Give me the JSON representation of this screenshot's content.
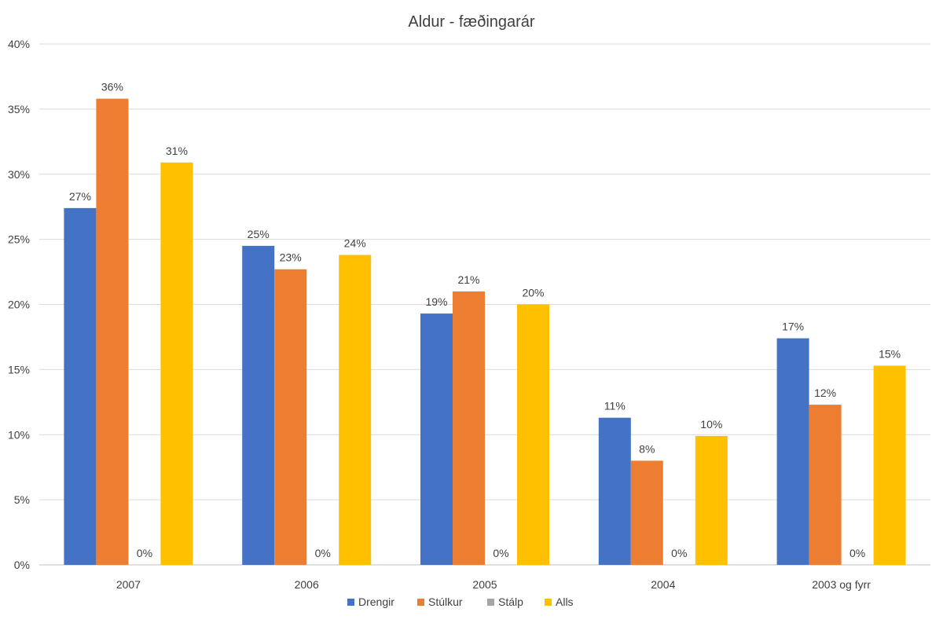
{
  "chart_data": {
    "type": "bar",
    "title": "Aldur - fæðingarár",
    "xlabel": "",
    "ylabel": "",
    "categories": [
      "2007",
      "2006",
      "2005",
      "2004",
      "2003 og fyrr"
    ],
    "series": [
      {
        "name": "Drengir",
        "color": "#4472C4",
        "values": [
          27.4,
          24.5,
          19.3,
          11.3,
          17.4
        ],
        "labels": [
          "27%",
          "25%",
          "19%",
          "11%",
          "17%"
        ]
      },
      {
        "name": "Stúlkur",
        "color": "#ED7D31",
        "values": [
          35.8,
          22.7,
          21.0,
          8.0,
          12.3
        ],
        "labels": [
          "36%",
          "23%",
          "21%",
          "8%",
          "12%"
        ]
      },
      {
        "name": "Stálp",
        "color": "#A5A5A5",
        "values": [
          0,
          0,
          0,
          0,
          0
        ],
        "labels": [
          "0%",
          "0%",
          "0%",
          "0%",
          "0%"
        ]
      },
      {
        "name": "Alls",
        "color": "#FFC000",
        "values": [
          30.9,
          23.8,
          20.0,
          9.9,
          15.3
        ],
        "labels": [
          "31%",
          "24%",
          "20%",
          "10%",
          "15%"
        ]
      }
    ],
    "ylim": [
      0,
      40
    ],
    "yticks": [
      "0%",
      "5%",
      "10%",
      "15%",
      "20%",
      "25%",
      "30%",
      "35%",
      "40%"
    ],
    "grid": true,
    "legend_position": "bottom"
  }
}
